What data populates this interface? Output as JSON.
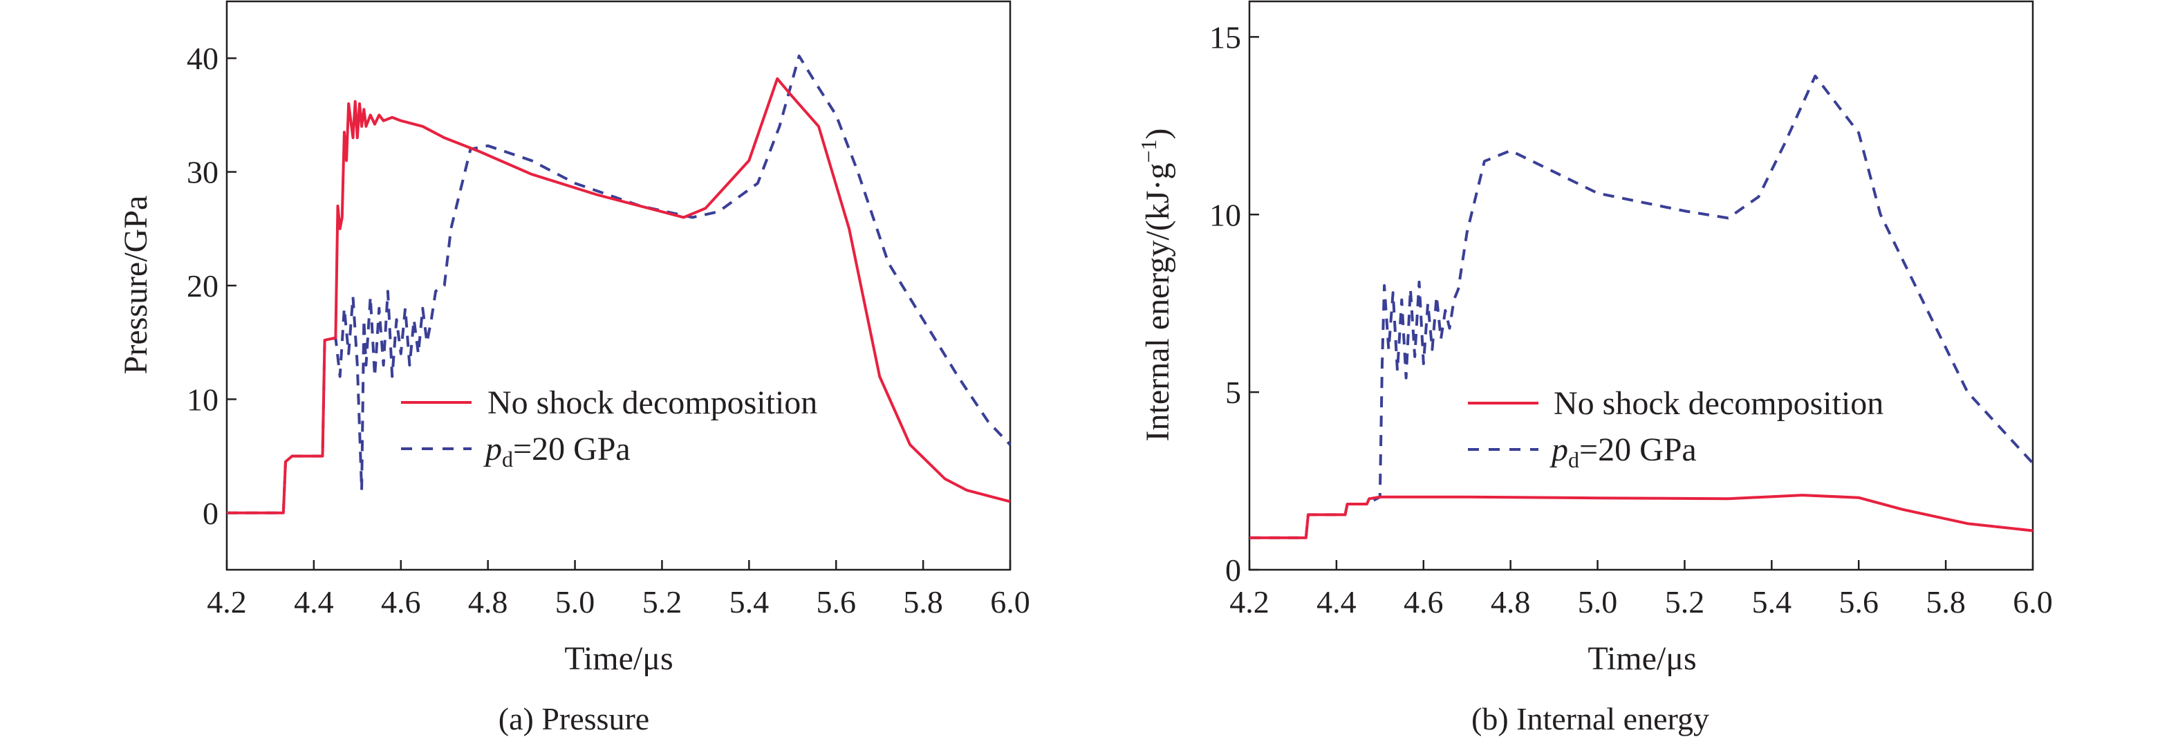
{
  "colors": {
    "no_decomposition": "#e8213f",
    "pd20": "#3a3f96",
    "axis": "#231f20"
  },
  "chart_data": [
    {
      "type": "line",
      "caption": "(a) Pressure",
      "xlabel": "Time/μs",
      "ylabel": "Pressure/GPa",
      "xlim": [
        4.2,
        6.0
      ],
      "ylim": [
        -5,
        45
      ],
      "xticks": [
        "4.2",
        "4.4",
        "4.6",
        "4.8",
        "5.0",
        "5.2",
        "5.4",
        "5.6",
        "5.8",
        "6.0"
      ],
      "yticks": [
        "0",
        "10",
        "20",
        "30",
        "40"
      ],
      "grid": false,
      "legend_position": "center-right",
      "series": [
        {
          "name": "No shock decomposition",
          "style": "solid",
          "x": [
            4.2,
            4.33,
            4.335,
            4.35,
            4.42,
            4.425,
            4.45,
            4.455,
            4.46,
            4.465,
            4.47,
            4.475,
            4.48,
            4.49,
            4.495,
            4.5,
            4.505,
            4.51,
            4.515,
            4.52,
            4.53,
            4.54,
            4.55,
            4.56,
            4.58,
            4.6,
            4.65,
            4.7,
            4.78,
            4.9,
            5.05,
            5.25,
            5.3,
            5.4,
            5.465,
            5.5,
            5.56,
            5.63,
            5.7,
            5.77,
            5.85,
            5.9,
            6.0
          ],
          "y": [
            0,
            0,
            4.5,
            5,
            5,
            15.2,
            15.4,
            27,
            25,
            26,
            33.5,
            31,
            36,
            33,
            36.2,
            33,
            36,
            34,
            35.5,
            34,
            35,
            34.2,
            35,
            34.5,
            34.8,
            34.5,
            34,
            33,
            31.8,
            29.8,
            28,
            26,
            26.8,
            31,
            38.2,
            36.6,
            34,
            25,
            12,
            6,
            3,
            2,
            1
          ]
        },
        {
          "name": "pd=20 GPa",
          "style": "dashed",
          "x": [
            4.2,
            4.33,
            4.335,
            4.35,
            4.42,
            4.425,
            4.45,
            4.46,
            4.47,
            4.48,
            4.49,
            4.5,
            4.51,
            4.515,
            4.52,
            4.53,
            4.54,
            4.55,
            4.56,
            4.57,
            4.58,
            4.59,
            4.6,
            4.61,
            4.62,
            4.63,
            4.64,
            4.65,
            4.66,
            4.67,
            4.68,
            4.7,
            4.715,
            4.76,
            4.8,
            4.9,
            5.0,
            5.15,
            5.27,
            5.33,
            5.42,
            5.47,
            5.515,
            5.55,
            5.6,
            5.65,
            5.72,
            5.8,
            5.88,
            5.95,
            6.0
          ],
          "y": [
            0,
            0,
            4.5,
            5,
            5,
            15.2,
            15.4,
            12,
            18,
            14,
            19,
            13,
            2,
            17,
            13,
            19,
            12,
            18,
            13,
            19.5,
            12,
            17,
            14,
            18,
            13,
            17,
            14,
            18,
            15,
            17,
            19.5,
            20,
            25,
            32,
            32.3,
            31,
            29,
            27,
            26,
            26.5,
            29,
            34,
            40.2,
            38,
            35,
            30,
            22,
            17,
            12,
            8,
            6
          ]
        }
      ],
      "legend": {
        "solid": "No shock decomposition",
        "dashed_prefix": "p",
        "dashed_sub": "d",
        "dashed_suffix": "=20 GPa"
      }
    },
    {
      "type": "line",
      "caption": "(b) Internal energy",
      "xlabel": "Time/μs",
      "ylabel": "Internal energy/(kJ·g",
      "ylabel_sup": "−1",
      "ylabel_end": ")",
      "xlim": [
        4.2,
        6.0
      ],
      "ylim": [
        0,
        16
      ],
      "xticks": [
        "4.2",
        "4.4",
        "4.6",
        "4.8",
        "5.0",
        "5.2",
        "5.4",
        "5.6",
        "5.8",
        "6.0"
      ],
      "yticks": [
        "0",
        "5",
        "10",
        "15"
      ],
      "grid": false,
      "legend_position": "center-right",
      "series": [
        {
          "name": "No shock decomposition",
          "style": "solid",
          "x": [
            4.2,
            4.33,
            4.335,
            4.42,
            4.425,
            4.47,
            4.475,
            4.5,
            4.7,
            5.0,
            5.3,
            5.47,
            5.6,
            5.7,
            5.85,
            6.0
          ],
          "y": [
            0.9,
            0.9,
            1.55,
            1.55,
            1.85,
            1.85,
            2.0,
            2.05,
            2.05,
            2.02,
            2.0,
            2.1,
            2.03,
            1.7,
            1.3,
            1.1
          ]
        },
        {
          "name": "pd=20 GPa",
          "style": "dashed",
          "x": [
            4.2,
            4.33,
            4.335,
            4.42,
            4.425,
            4.47,
            4.5,
            4.505,
            4.51,
            4.52,
            4.53,
            4.54,
            4.55,
            4.56,
            4.57,
            4.58,
            4.59,
            4.6,
            4.61,
            4.62,
            4.63,
            4.64,
            4.65,
            4.66,
            4.67,
            4.68,
            4.7,
            4.74,
            4.8,
            4.9,
            5.0,
            5.2,
            5.3,
            5.37,
            5.43,
            5.5,
            5.6,
            5.65,
            5.75,
            5.85,
            6.0
          ],
          "y": [
            0.9,
            0.9,
            1.55,
            1.55,
            1.85,
            1.85,
            2.05,
            5.8,
            8,
            6.2,
            7.8,
            5.6,
            7.6,
            5.4,
            7.9,
            6,
            8.1,
            5.8,
            7.5,
            6.2,
            7.7,
            6.5,
            7.3,
            6.8,
            7.6,
            7.9,
            9.5,
            11.5,
            11.8,
            11.2,
            10.6,
            10.1,
            9.9,
            10.5,
            12,
            13.9,
            12.3,
            10,
            7.5,
            5,
            3
          ]
        }
      ],
      "legend": {
        "solid": "No shock decomposition",
        "dashed_prefix": "p",
        "dashed_sub": "d",
        "dashed_suffix": "=20 GPa"
      }
    }
  ]
}
